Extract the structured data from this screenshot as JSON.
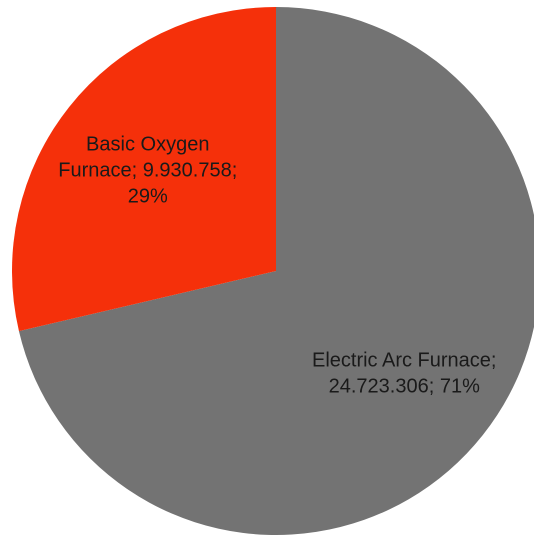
{
  "chart_data": {
    "type": "pie",
    "start": "12 o'clock, clockwise",
    "slices": [
      {
        "name": "Electric Arc Furnace",
        "value": 24723306,
        "percent": 71,
        "label_lines": [
          "Electric Arc Furnace;",
          "24.723.306; 71%"
        ],
        "color": "#737373"
      },
      {
        "name": "Basic Oxygen Furnace",
        "value": 9930758,
        "percent": 29,
        "label_lines": [
          "Basic Oxygen",
          "Furnace; 9.930.758;",
          "29%"
        ],
        "color": "#f5300a"
      }
    ]
  }
}
